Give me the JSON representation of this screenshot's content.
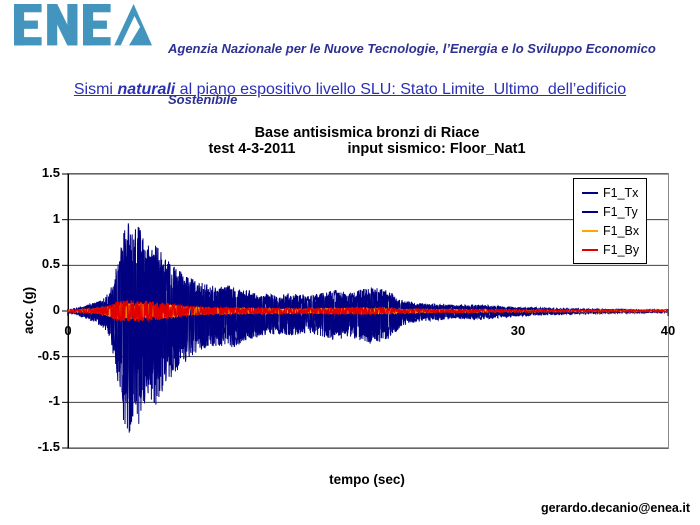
{
  "header": {
    "agency_line1": "Agenzia Nazionale per le Nuove Tecnologie, l’Energia e lo Sviluppo Economico",
    "agency_line2": "Sostenibile",
    "text_color": "#2E3192",
    "logo_color": "#4495BD",
    "logo_text": "ENEA"
  },
  "slide_title": {
    "prefix": "Sismi ",
    "emphasis": "naturali",
    "suffix": " al piano espositivo livello SLU: Stato Limite  Ultimo  dell’edificio",
    "color": "#2A2FB8"
  },
  "footer": {
    "email": "gerardo.decanio@enea.it"
  },
  "chart_data": {
    "type": "line",
    "title_line1": "Base antisismica bronzi di Riace",
    "title_line2_left": "test 4-3-2011",
    "title_line2_right": "input sismico: Floor_Nat1",
    "xlabel": "tempo (sec)",
    "ylabel": "acc. (g)",
    "xlim": [
      0,
      40
    ],
    "ylim": [
      -1.5,
      1.5
    ],
    "xticks": [
      "0",
      "10",
      "20",
      "30",
      "40"
    ],
    "yticks": [
      "1.5",
      "1",
      "0.5",
      "0",
      "-0.5",
      "-1",
      "-1.5"
    ],
    "grid": true,
    "legend_position": "top-right-inside",
    "sample_dt": 0.02,
    "gridline_color": "#3f3f3f",
    "axis_color": "#000000",
    "plot_border_color": "#8a8a8a",
    "envelopes": {
      "T": {
        "t": [
          0,
          0.5,
          1.2,
          1.8,
          2.3,
          2.8,
          3.1,
          3.4,
          3.7,
          4.0,
          4.3,
          4.7,
          5.2,
          5.8,
          6.4,
          7.0,
          7.6,
          8.2,
          9.0,
          10.0,
          11.0,
          12.0,
          13.0,
          14.0,
          15.0,
          16.0,
          17.0,
          17.8,
          18.6,
          19.4,
          20.2,
          21.0,
          21.6,
          22.2,
          23.0,
          24.0,
          25.0,
          26.0,
          27.0,
          28.0,
          29.0,
          30.0,
          31.5,
          33.0,
          35.0,
          37.0,
          40.0
        ],
        "a": [
          0.02,
          0.04,
          0.09,
          0.13,
          0.18,
          0.3,
          0.55,
          0.85,
          1.25,
          1.4,
          1.2,
          1.3,
          1.0,
          1.05,
          0.85,
          0.7,
          0.6,
          0.5,
          0.42,
          0.38,
          0.4,
          0.32,
          0.27,
          0.25,
          0.27,
          0.24,
          0.28,
          0.33,
          0.28,
          0.32,
          0.36,
          0.34,
          0.28,
          0.17,
          0.13,
          0.11,
          0.1,
          0.09,
          0.1,
          0.09,
          0.07,
          0.06,
          0.05,
          0.04,
          0.03,
          0.025,
          0.02
        ]
      },
      "B": {
        "t": [
          0,
          1.0,
          2.0,
          2.6,
          3.2,
          4.0,
          5.0,
          6.0,
          7.0,
          8.0,
          9.0,
          10.0,
          12.0,
          14.0,
          16.0,
          18.0,
          19.5,
          21.0,
          22.0,
          24.0,
          26.0,
          28.0,
          30.0,
          34.0,
          40.0
        ],
        "a": [
          0.015,
          0.02,
          0.035,
          0.06,
          0.1,
          0.12,
          0.11,
          0.1,
          0.08,
          0.055,
          0.045,
          0.04,
          0.035,
          0.03,
          0.03,
          0.035,
          0.04,
          0.035,
          0.025,
          0.02,
          0.018,
          0.015,
          0.012,
          0.01,
          0.01
        ]
      }
    },
    "series": [
      {
        "name": "F1_Tx",
        "color": "#000080",
        "envelope": "T",
        "scale": 1.0,
        "pos_scale": 0.72,
        "seed": 1234
      },
      {
        "name": "F1_Ty",
        "color": "#000080",
        "envelope": "T",
        "scale": 0.82,
        "pos_scale": 0.72,
        "seed": 5678
      },
      {
        "name": "F1_Bx",
        "color": "#FFA500",
        "envelope": "B",
        "scale": 0.85,
        "pos_scale": 1.0,
        "seed": 4242
      },
      {
        "name": "F1_By",
        "color": "#E00000",
        "envelope": "B",
        "scale": 1.0,
        "pos_scale": 1.0,
        "seed": 9001
      }
    ]
  }
}
